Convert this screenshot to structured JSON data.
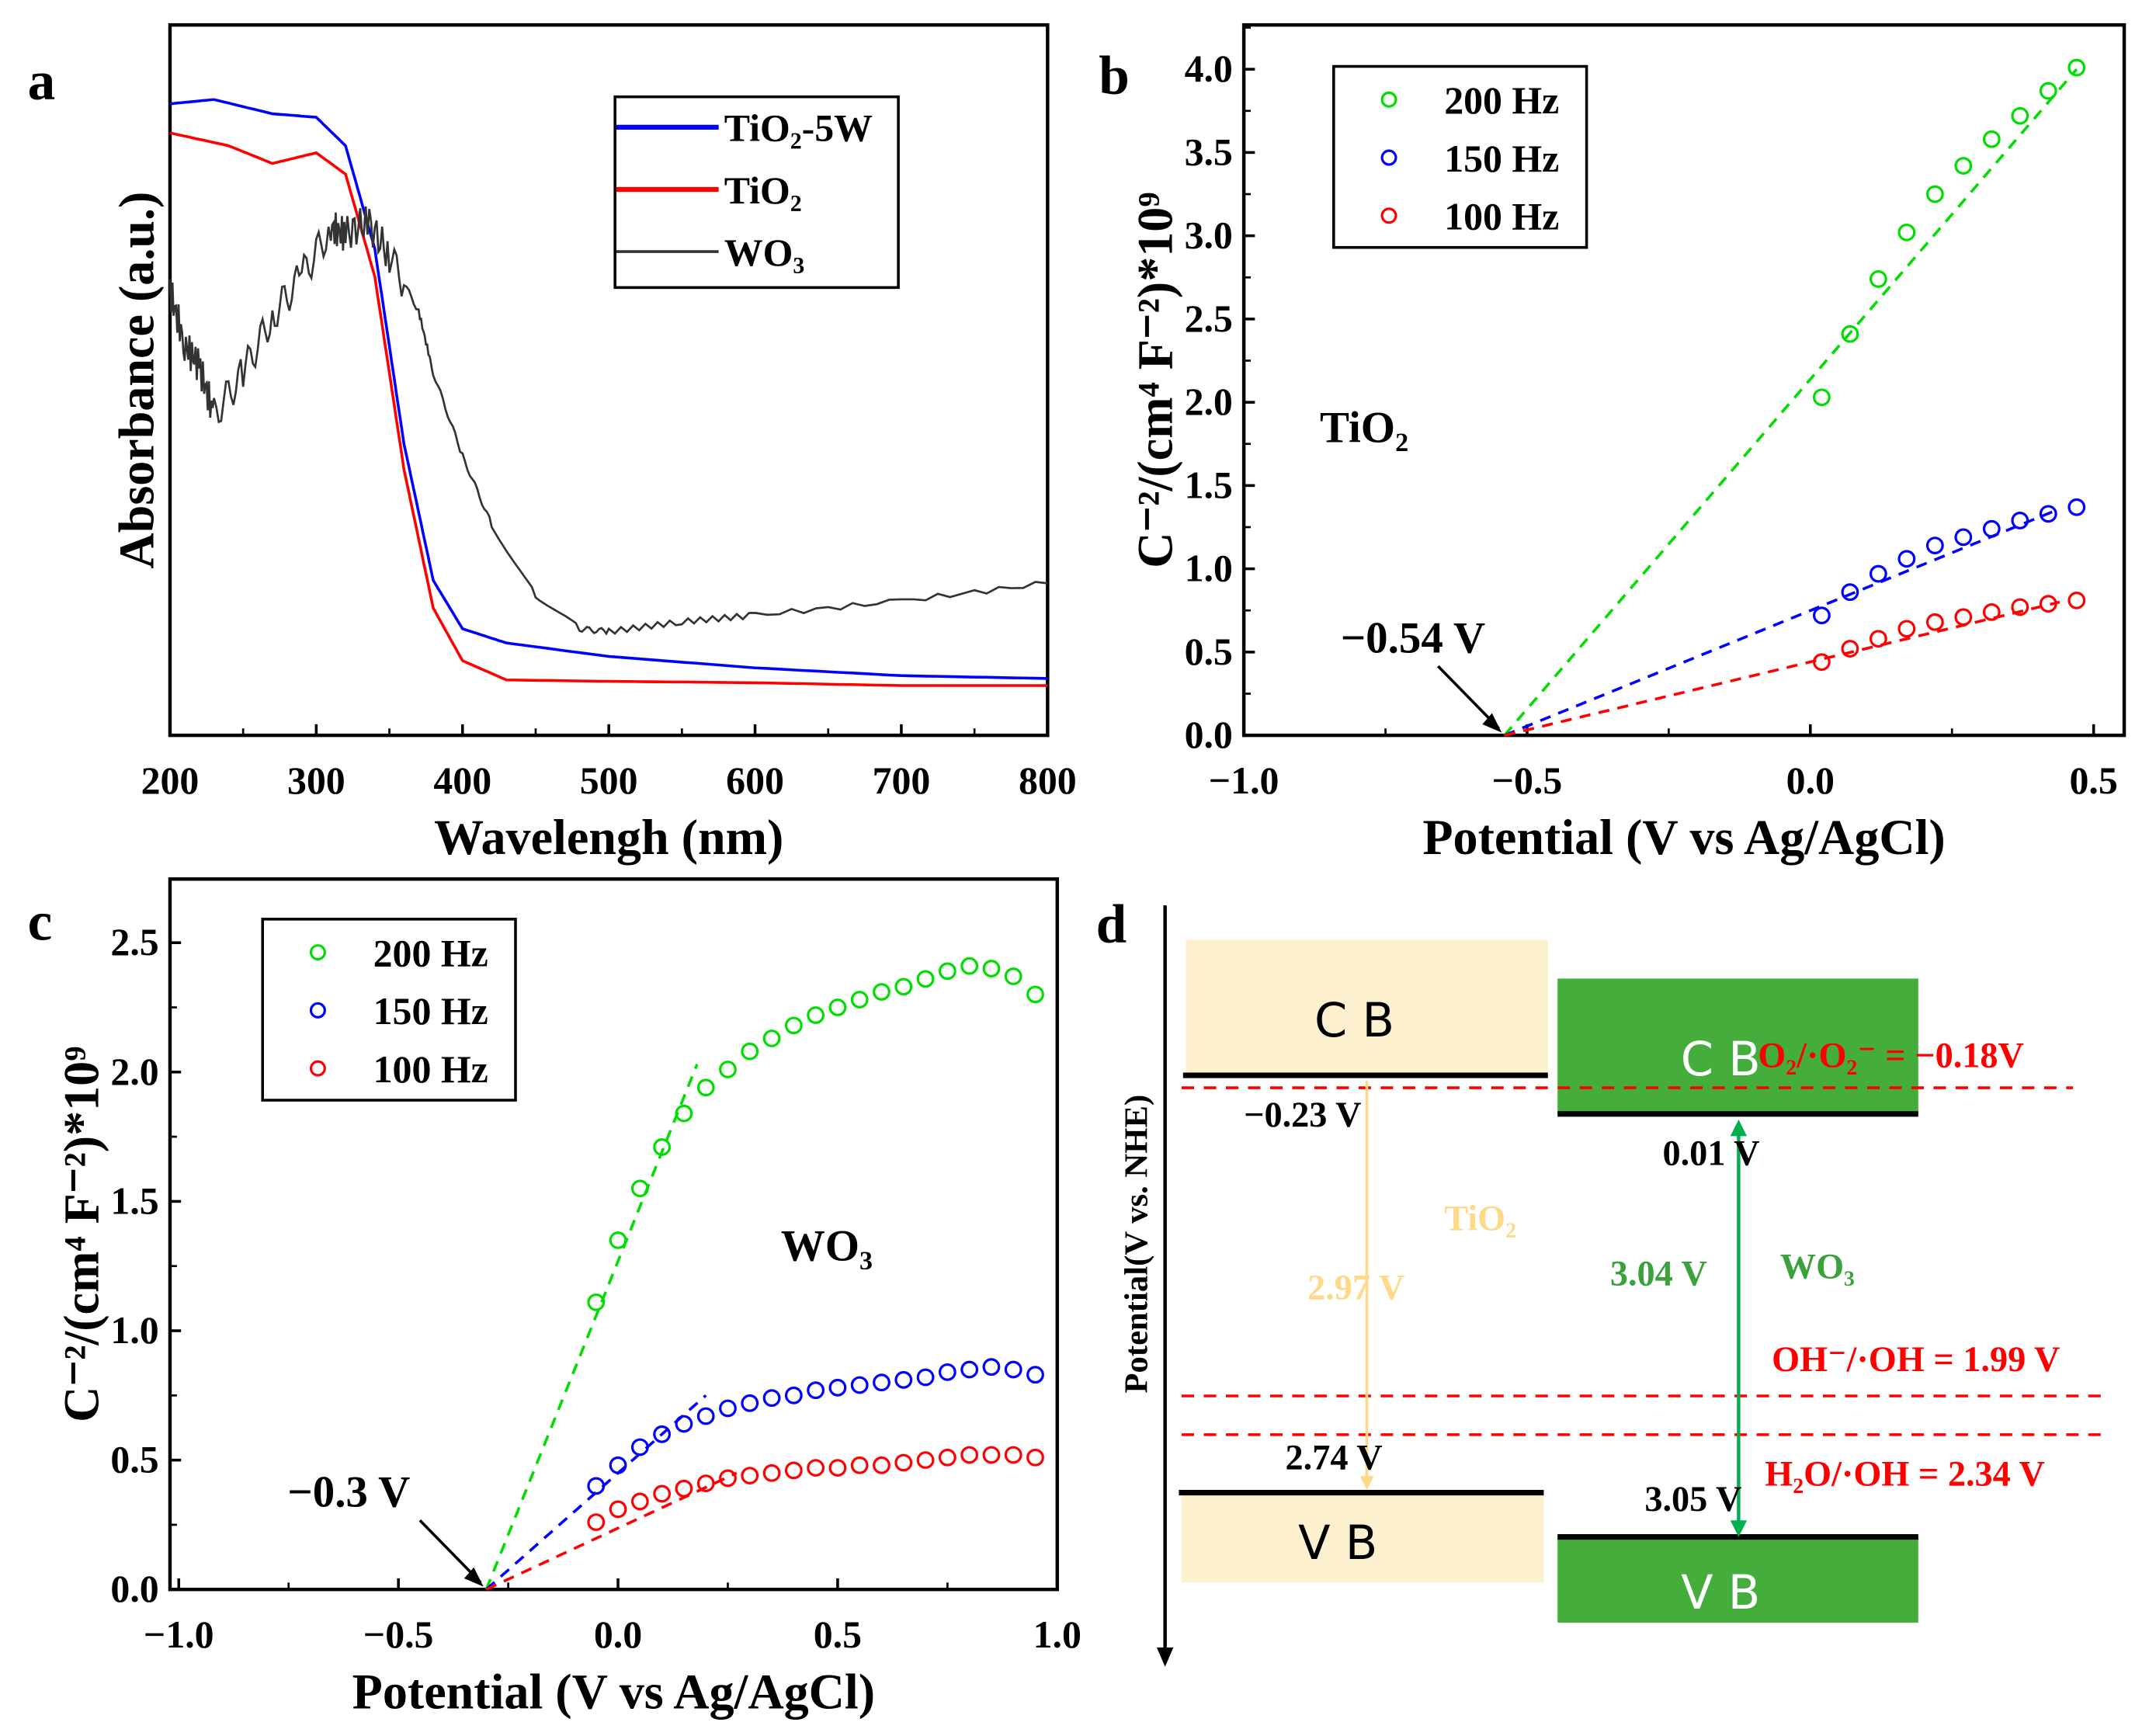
{
  "panel_labels": {
    "a": "a",
    "b": "b",
    "c": "c",
    "d": "d"
  },
  "chart_data": [
    {
      "id": "a",
      "type": "line",
      "xlabel": "Wavelengh (nm)",
      "ylabel": "Absorbance (a.u.)",
      "xlim": [
        200,
        800
      ],
      "ylim": [
        0,
        1
      ],
      "x_ticks": [
        200,
        300,
        400,
        500,
        600,
        700,
        800
      ],
      "y_ticks": [],
      "legend_position": "top-right",
      "series": [
        {
          "name": "TiO₂-5W",
          "color": "#0000ff",
          "x": [
            200,
            230,
            270,
            300,
            320,
            340,
            360,
            380,
            400,
            430,
            500,
            600,
            700,
            800
          ],
          "y": [
            0.889,
            0.895,
            0.875,
            0.87,
            0.83,
            0.685,
            0.41,
            0.218,
            0.15,
            0.13,
            0.111,
            0.095,
            0.084,
            0.08
          ]
        },
        {
          "name": "TiO₂",
          "color": "#ff0000",
          "x": [
            200,
            240,
            270,
            300,
            320,
            340,
            360,
            380,
            400,
            430,
            500,
            600,
            700,
            800
          ],
          "y": [
            0.848,
            0.83,
            0.805,
            0.82,
            0.79,
            0.646,
            0.374,
            0.179,
            0.105,
            0.078,
            0.076,
            0.074,
            0.07,
            0.07
          ]
        },
        {
          "name": "WO₃",
          "color": "#333333",
          "x": [
            200,
            210,
            220,
            230,
            250,
            270,
            290,
            310,
            320,
            335,
            350,
            370,
            380,
            400,
            420,
            450,
            480,
            500,
            550,
            600,
            700,
            800
          ],
          "y": [
            0.626,
            0.55,
            0.52,
            0.45,
            0.51,
            0.59,
            0.646,
            0.714,
            0.705,
            0.724,
            0.675,
            0.597,
            0.51,
            0.393,
            0.296,
            0.198,
            0.15,
            0.146,
            0.16,
            0.169,
            0.189,
            0.214
          ]
        }
      ]
    },
    {
      "id": "b",
      "type": "scatter",
      "xlabel": "Potential (V vs Ag/AgCl)",
      "ylabel": "C⁻²/(cm⁴ F⁻²)*10⁹",
      "xlim": [
        -1.0,
        0.554
      ],
      "ylim": [
        0,
        4.266
      ],
      "x_ticks": [
        "−1.0",
        "−0.5",
        "0.0",
        "0.5"
      ],
      "x_tick_values": [
        -1.0,
        -0.5,
        0.0,
        0.5
      ],
      "y_ticks": [
        "0.0",
        "0.5",
        "1.0",
        "1.5",
        "2.0",
        "2.5",
        "3.0",
        "3.5",
        "4.0"
      ],
      "y_tick_values": [
        0,
        0.5,
        1,
        1.5,
        2,
        2.5,
        3,
        3.5,
        4
      ],
      "legend_position": "top-left",
      "annotation": "TiO₂",
      "intercept_label": "−0.54 V",
      "intercept": -0.54,
      "x": [
        0.02,
        0.07,
        0.12,
        0.17,
        0.22,
        0.27,
        0.32,
        0.37,
        0.42,
        0.47
      ],
      "series": [
        {
          "name": "200 Hz",
          "color": "#00dd00",
          "y": [
            2.03,
            2.41,
            2.74,
            3.02,
            3.25,
            3.42,
            3.58,
            3.72,
            3.87,
            4.01
          ],
          "fit": [
            [
              -0.54,
              0
            ],
            [
              0.47,
              4.0
            ]
          ]
        },
        {
          "name": "150 Hz",
          "color": "#0000ff",
          "y": [
            0.72,
            0.86,
            0.97,
            1.06,
            1.14,
            1.19,
            1.24,
            1.29,
            1.33,
            1.37
          ],
          "fit": [
            [
              -0.54,
              0
            ],
            [
              0.44,
              1.36
            ]
          ]
        },
        {
          "name": "100 Hz",
          "color": "#ff0000",
          "y": [
            0.44,
            0.52,
            0.58,
            0.64,
            0.68,
            0.71,
            0.74,
            0.77,
            0.79,
            0.81
          ],
          "fit": [
            [
              -0.54,
              0
            ],
            [
              0.44,
              0.8
            ]
          ]
        }
      ]
    },
    {
      "id": "c",
      "type": "scatter",
      "xlabel": "Potential (V vs Ag/AgCl)",
      "ylabel": "C⁻²/(cm⁴ F⁻²)*10⁹",
      "xlim": [
        -1.02,
        1.0
      ],
      "ylim": [
        0,
        2.746
      ],
      "x_ticks": [
        "−1.0",
        "−0.5",
        "0.0",
        "0.5",
        "1.0"
      ],
      "x_tick_values": [
        -1.0,
        -0.5,
        0.0,
        0.5,
        1.0
      ],
      "y_ticks": [
        "0.0",
        "0.5",
        "1.0",
        "1.5",
        "2.0",
        "2.5"
      ],
      "y_tick_values": [
        0,
        0.5,
        1,
        1.5,
        2,
        2.5
      ],
      "legend_position": "top-left",
      "annotation": "WO₃",
      "intercept_label": "−0.3 V",
      "intercept": -0.3,
      "x": [
        -0.05,
        0,
        0.05,
        0.1,
        0.15,
        0.2,
        0.25,
        0.3,
        0.35,
        0.4,
        0.45,
        0.5,
        0.55,
        0.6,
        0.65,
        0.7,
        0.75,
        0.8,
        0.85,
        0.9,
        0.95
      ],
      "series": [
        {
          "name": "200 Hz",
          "color": "#00dd00",
          "y": [
            1.11,
            1.35,
            1.55,
            1.71,
            1.84,
            1.94,
            2.01,
            2.08,
            2.13,
            2.18,
            2.22,
            2.25,
            2.28,
            2.31,
            2.33,
            2.36,
            2.39,
            2.41,
            2.4,
            2.37,
            2.3
          ],
          "fit": [
            [
              -0.3,
              0
            ],
            [
              0.18,
              2.03
            ]
          ]
        },
        {
          "name": "150 Hz",
          "color": "#0000ff",
          "y": [
            0.4,
            0.48,
            0.55,
            0.6,
            0.64,
            0.67,
            0.7,
            0.72,
            0.74,
            0.75,
            0.77,
            0.78,
            0.79,
            0.8,
            0.81,
            0.82,
            0.84,
            0.85,
            0.86,
            0.85,
            0.83
          ],
          "fit": [
            [
              -0.3,
              0
            ],
            [
              0.2,
              0.75
            ]
          ]
        },
        {
          "name": "100 Hz",
          "color": "#ff0000",
          "y": [
            0.26,
            0.31,
            0.34,
            0.37,
            0.39,
            0.41,
            0.43,
            0.44,
            0.45,
            0.46,
            0.47,
            0.47,
            0.48,
            0.48,
            0.49,
            0.5,
            0.51,
            0.52,
            0.52,
            0.52,
            0.51
          ],
          "fit": [
            [
              -0.3,
              0
            ],
            [
              0.27,
              0.45
            ]
          ]
        }
      ]
    }
  ],
  "panel_d": {
    "ylabel": "Potential(V vs. NHE)",
    "tio2": {
      "cb": "C B",
      "vb": "V B",
      "cb_value": "−0.23 V",
      "vb_value": "2.74 V",
      "gap": "2.97 V",
      "name": "TiO₂",
      "fill": "#fdf0cf",
      "arrow_color": "#ffd98a"
    },
    "wo3": {
      "cb": "C B",
      "vb": "V B",
      "cb_value": "0.01 V",
      "vb_value": "3.05 V",
      "gap": "3.04 V",
      "name": "WO₃",
      "fill": "#45ad3c",
      "arrow_color": "#00b050",
      "text_color": "#3aa23a"
    },
    "redox": [
      {
        "label": "O₂/·O₂⁻ = −0.18V"
      },
      {
        "label": "OH⁻/·OH = 1.99 V"
      },
      {
        "label": "H₂O/·OH = 2.34 V"
      }
    ],
    "redox_color": "#ff0000"
  }
}
